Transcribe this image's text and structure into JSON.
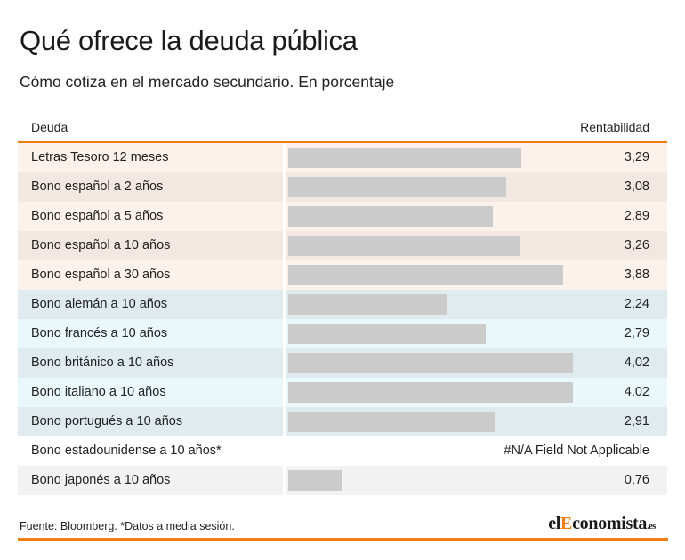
{
  "title": "Qué ofrece la deuda pública",
  "subtitle": "Cómo cotiza en el mercado secundario. En porcentaje",
  "colors": {
    "accent": "#ee7d12",
    "bar": "#cbcbcb",
    "row_spain_a": "#fdf1ec",
    "row_spain_b": "#f3e8e1",
    "row_foreign_a": "#dfebee",
    "row_foreign_b": "#ebf8fb",
    "row_other_a": "#ffffff",
    "row_other_b": "#f2f2f2"
  },
  "chart_data": {
    "type": "bar",
    "orientation": "horizontal",
    "xlabel": "Deuda",
    "ylabel": "Rentabilidad",
    "ylim": [
      0,
      4.02
    ],
    "rows": [
      {
        "label": "Letras Tesoro 12 meses",
        "value": 3.29,
        "display": "3,29",
        "group": "spain"
      },
      {
        "label": "Bono español a 2 años",
        "value": 3.08,
        "display": "3,08",
        "group": "spain"
      },
      {
        "label": "Bono español a 5 años",
        "value": 2.89,
        "display": "2,89",
        "group": "spain"
      },
      {
        "label": "Bono español a 10 años",
        "value": 3.26,
        "display": "3,26",
        "group": "spain"
      },
      {
        "label": "Bono español a 30 años",
        "value": 3.88,
        "display": "3,88",
        "group": "spain"
      },
      {
        "label": "Bono alemán a 10 años",
        "value": 2.24,
        "display": "2,24",
        "group": "foreign"
      },
      {
        "label": "Bono francés a 10 años",
        "value": 2.79,
        "display": "2,79",
        "group": "foreign"
      },
      {
        "label": "Bono británico a 10 años",
        "value": 4.02,
        "display": "4,02",
        "group": "foreign"
      },
      {
        "label": "Bono italiano a 10 años",
        "value": 4.02,
        "display": "4,02",
        "group": "foreign"
      },
      {
        "label": "Bono portugués a 10 años",
        "value": 2.91,
        "display": "2,91",
        "group": "foreign"
      },
      {
        "label": "Bono estadounidense a 10 años*",
        "value": null,
        "display": "#N/A Field Not Applicable",
        "group": "other"
      },
      {
        "label": "Bono japonés a 10 años",
        "value": 0.76,
        "display": "0,76",
        "group": "other"
      }
    ]
  },
  "footer": "Fuente: Bloomberg. *Datos a media sesión.",
  "logo": {
    "prefix": "el",
    "highlight": "E",
    "rest": "conomista",
    "suffix": ".es"
  }
}
